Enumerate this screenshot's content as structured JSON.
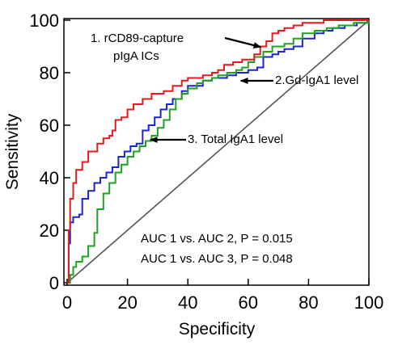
{
  "chart_data": {
    "type": "line",
    "xlabel": "Specificity",
    "ylabel": "Sensitivity",
    "xlim": [
      0,
      100
    ],
    "ylim": [
      0,
      100
    ],
    "xticks": [
      "0",
      "20",
      "40",
      "60",
      "80",
      "100"
    ],
    "yticks": [
      "0",
      "20",
      "40",
      "60",
      "80",
      "100"
    ],
    "grid": false,
    "reference_line": {
      "x": [
        0,
        100
      ],
      "y": [
        0,
        100
      ],
      "color": "#555555"
    },
    "series": [
      {
        "color": "#e8191e",
        "points": [
          [
            0,
            0
          ],
          [
            0.5,
            20
          ],
          [
            1,
            32
          ],
          [
            2,
            38
          ],
          [
            3,
            43
          ],
          [
            5,
            46
          ],
          [
            7,
            50
          ],
          [
            10,
            53
          ],
          [
            12,
            55
          ],
          [
            14,
            56
          ],
          [
            15,
            58
          ],
          [
            16,
            62
          ],
          [
            18,
            63
          ],
          [
            20,
            66
          ],
          [
            22,
            68
          ],
          [
            25,
            70
          ],
          [
            28,
            72
          ],
          [
            30,
            72
          ],
          [
            32,
            73
          ],
          [
            35,
            75
          ],
          [
            38,
            77
          ],
          [
            40,
            78
          ],
          [
            42,
            78
          ],
          [
            45,
            79
          ],
          [
            48,
            80
          ],
          [
            50,
            81
          ],
          [
            52,
            83
          ],
          [
            55,
            84
          ],
          [
            58,
            85
          ],
          [
            62,
            87
          ],
          [
            64,
            90
          ],
          [
            66,
            92
          ],
          [
            68,
            95
          ],
          [
            70,
            96
          ],
          [
            72,
            97
          ],
          [
            75,
            98
          ],
          [
            78,
            99
          ],
          [
            82,
            99
          ],
          [
            85,
            100
          ],
          [
            90,
            100
          ],
          [
            95,
            100
          ],
          [
            100,
            100
          ]
        ]
      },
      {
        "color": "#1e22d2",
        "points": [
          [
            0,
            0
          ],
          [
            0.5,
            15
          ],
          [
            1,
            23
          ],
          [
            2,
            25
          ],
          [
            4,
            26
          ],
          [
            5,
            32
          ],
          [
            7,
            35
          ],
          [
            9,
            38
          ],
          [
            11,
            40
          ],
          [
            13,
            42
          ],
          [
            15,
            44
          ],
          [
            17,
            48
          ],
          [
            19,
            50
          ],
          [
            21,
            52
          ],
          [
            23,
            53
          ],
          [
            25,
            58
          ],
          [
            27,
            60
          ],
          [
            29,
            63
          ],
          [
            31,
            66
          ],
          [
            33,
            68
          ],
          [
            35,
            70
          ],
          [
            38,
            73
          ],
          [
            40,
            75
          ],
          [
            43,
            75
          ],
          [
            45,
            77
          ],
          [
            48,
            78
          ],
          [
            50,
            78
          ],
          [
            53,
            79
          ],
          [
            56,
            80
          ],
          [
            60,
            81
          ],
          [
            63,
            82
          ],
          [
            65,
            86
          ],
          [
            68,
            87
          ],
          [
            70,
            88
          ],
          [
            72,
            89
          ],
          [
            75,
            90
          ],
          [
            78,
            93
          ],
          [
            82,
            95
          ],
          [
            85,
            96
          ],
          [
            88,
            97
          ],
          [
            92,
            98
          ],
          [
            96,
            99
          ],
          [
            100,
            100
          ]
        ]
      },
      {
        "color": "#1fa31f",
        "points": [
          [
            0,
            0
          ],
          [
            1,
            3
          ],
          [
            2,
            6
          ],
          [
            3,
            8
          ],
          [
            5,
            10
          ],
          [
            7,
            14
          ],
          [
            9,
            19
          ],
          [
            10,
            28
          ],
          [
            12,
            34
          ],
          [
            14,
            38
          ],
          [
            16,
            42
          ],
          [
            18,
            45
          ],
          [
            20,
            48
          ],
          [
            22,
            50
          ],
          [
            24,
            52
          ],
          [
            26,
            54
          ],
          [
            28,
            56
          ],
          [
            30,
            59
          ],
          [
            32,
            62
          ],
          [
            34,
            66
          ],
          [
            36,
            70
          ],
          [
            38,
            72
          ],
          [
            40,
            74
          ],
          [
            43,
            76
          ],
          [
            45,
            77
          ],
          [
            48,
            78
          ],
          [
            50,
            79
          ],
          [
            53,
            80
          ],
          [
            56,
            81
          ],
          [
            58,
            82
          ],
          [
            60,
            84
          ],
          [
            62,
            86
          ],
          [
            65,
            88
          ],
          [
            68,
            90
          ],
          [
            72,
            91
          ],
          [
            75,
            93
          ],
          [
            78,
            95
          ],
          [
            82,
            96
          ],
          [
            86,
            97
          ],
          [
            90,
            98
          ],
          [
            95,
            99
          ],
          [
            100,
            100
          ]
        ]
      }
    ],
    "annotations": [
      {
        "label": "1. rCD89-capture",
        "label_line2": "pIgA ICs",
        "target": [
          65,
          91
        ]
      },
      {
        "label": "2.Gd-IgA1 level",
        "target": [
          57,
          80
        ]
      },
      {
        "label": "3. Total IgA1 level",
        "target": [
          27,
          55
        ]
      }
    ],
    "stats": [
      "AUC 1 vs. AUC 2, P = 0.015",
      "AUC 1 vs. AUC 3, P = 0.048"
    ]
  }
}
